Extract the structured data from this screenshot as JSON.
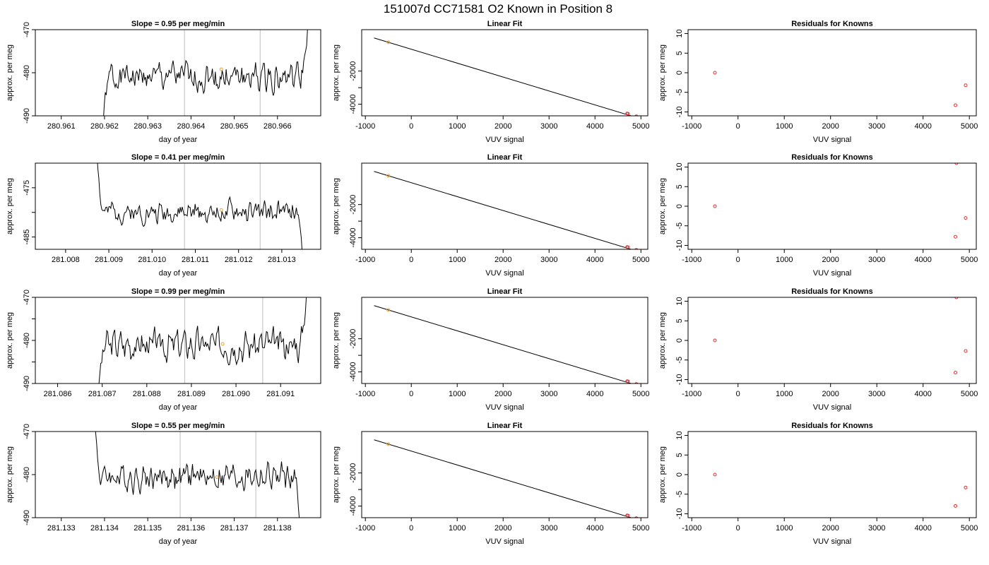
{
  "page": {
    "title": "151007d      CC71581   O2 Known in Position  8"
  },
  "chart_data": [
    {
      "type": "line",
      "title": "Slope =  0.95  per meg/min",
      "xlabel": "day of year",
      "ylabel": "approx. per meg",
      "xlim": [
        280.9604,
        280.967
      ],
      "ylim": [
        -490,
        -470
      ],
      "xticks": [
        280.961,
        280.962,
        280.963,
        280.964,
        280.965,
        280.966
      ],
      "xtick_labels": [
        "280.961",
        "280.962",
        "280.963",
        "280.964",
        "280.965",
        "280.966"
      ],
      "yticks": [
        -490,
        -480,
        -470
      ],
      "ytick_labels": [
        "-490",
        "-480",
        "-470"
      ],
      "vlines": [
        280.96385,
        280.9656
      ],
      "x_start": 280.96195,
      "x_end": 280.96672,
      "baseline": -481,
      "amplitude": 3.2,
      "seed": 1,
      "ramp_in": "start",
      "ramp_out": "up",
      "marker": {
        "x": 280.9647,
        "y": -479.2,
        "color": "#f0a030"
      },
      "line_color": "#000000",
      "grid": false
    },
    {
      "type": "scatter",
      "title": "Linear Fit",
      "xlabel": "VUV signal",
      "ylabel": "approx. per meg",
      "xlim": [
        -1080,
        5150
      ],
      "ylim": [
        -4700,
        500
      ],
      "xticks": [
        -1000,
        0,
        1000,
        2000,
        3000,
        4000,
        5000
      ],
      "xtick_labels": [
        "-1000",
        "0",
        "1000",
        "2000",
        "3000",
        "4000",
        "5000"
      ],
      "yticks": [
        -4000,
        -3000,
        -2000
      ],
      "ytick_labels": [
        "-4000",
        "",
        "-2000"
      ],
      "fit_line": {
        "x": [
          -810,
          4880
        ],
        "y": [
          0,
          -4780
        ]
      },
      "points": [
        {
          "x": -500,
          "y": -260,
          "color": "#f0a030"
        },
        {
          "x": 4700,
          "y": -4560,
          "color": "#e03030"
        },
        {
          "x": 4720,
          "y": -4575,
          "color": "#e03030"
        },
        {
          "x": 4900,
          "y": -4730,
          "color": "#e03030"
        }
      ],
      "grid": false
    },
    {
      "type": "scatter",
      "title": "Residuals for Knowns",
      "xlabel": "VUV signal",
      "ylabel": "approx. per meg",
      "xlim": [
        -1080,
        5150
      ],
      "ylim": [
        -11,
        11
      ],
      "xticks": [
        -1000,
        0,
        1000,
        2000,
        3000,
        4000,
        5000
      ],
      "xtick_labels": [
        "-1000",
        "0",
        "1000",
        "2000",
        "3000",
        "4000",
        "5000"
      ],
      "yticks": [
        -10,
        -5,
        0,
        5,
        10
      ],
      "ytick_labels": [
        "-10",
        "-5",
        "0",
        "5",
        "10"
      ],
      "points": [
        {
          "x": -500,
          "y": 0,
          "color": "#e03030"
        },
        {
          "x": 4700,
          "y": -8.3,
          "color": "#e03030"
        },
        {
          "x": 4920,
          "y": -3.2,
          "color": "#e03030"
        }
      ],
      "grid": false
    },
    {
      "type": "line",
      "title": "Slope =  0.41  per meg/min",
      "xlabel": "day of year",
      "ylabel": "approx. per meg",
      "xlim": [
        281.0073,
        281.0139
      ],
      "ylim": [
        -487.5,
        -470
      ],
      "xticks": [
        281.008,
        281.009,
        281.01,
        281.011,
        281.012,
        281.013
      ],
      "xtick_labels": [
        "281.008",
        "281.009",
        "281.010",
        "281.011",
        "281.012",
        "281.013"
      ],
      "yticks": [
        -485,
        -480,
        -475
      ],
      "ytick_labels": [
        "-485",
        "",
        "-475"
      ],
      "vlines": [
        281.01075,
        281.0125
      ],
      "x_start": 281.0087,
      "x_end": 281.01352,
      "baseline": -480,
      "amplitude": 2.0,
      "seed": 2,
      "ramp_in": "down",
      "ramp_out": "down",
      "marker": {
        "x": 281.0116,
        "y": -479.5,
        "color": "#f0a030"
      },
      "line_color": "#000000",
      "grid": false
    },
    {
      "type": "scatter",
      "title": "Linear Fit",
      "xlabel": "VUV signal",
      "ylabel": "approx. per meg",
      "xlim": [
        -1080,
        5150
      ],
      "ylim": [
        -4700,
        500
      ],
      "xticks": [
        -1000,
        0,
        1000,
        2000,
        3000,
        4000,
        5000
      ],
      "xtick_labels": [
        "-1000",
        "0",
        "1000",
        "2000",
        "3000",
        "4000",
        "5000"
      ],
      "yticks": [
        -4000,
        -3000,
        -2000
      ],
      "ytick_labels": [
        "-4000",
        "",
        "-2000"
      ],
      "fit_line": {
        "x": [
          -810,
          4880
        ],
        "y": [
          0,
          -4780
        ]
      },
      "points": [
        {
          "x": -500,
          "y": -260,
          "color": "#f0a030"
        },
        {
          "x": 4700,
          "y": -4560,
          "color": "#e03030"
        },
        {
          "x": 4720,
          "y": -4575,
          "color": "#e03030"
        },
        {
          "x": 4900,
          "y": -4730,
          "color": "#e03030"
        }
      ],
      "grid": false
    },
    {
      "type": "scatter",
      "title": "Residuals for Knowns",
      "xlabel": "VUV signal",
      "ylabel": "approx. per meg",
      "xlim": [
        -1080,
        5150
      ],
      "ylim": [
        -11,
        11
      ],
      "xticks": [
        -1000,
        0,
        1000,
        2000,
        3000,
        4000,
        5000
      ],
      "xtick_labels": [
        "-1000",
        "0",
        "1000",
        "2000",
        "3000",
        "4000",
        "5000"
      ],
      "yticks": [
        -10,
        -5,
        0,
        5,
        10
      ],
      "ytick_labels": [
        "-10",
        "-5",
        "0",
        "5",
        "10"
      ],
      "points": [
        {
          "x": -500,
          "y": 0,
          "color": "#e03030"
        },
        {
          "x": 4700,
          "y": -7.8,
          "color": "#e03030"
        },
        {
          "x": 4720,
          "y": 11,
          "color": "#e03030"
        },
        {
          "x": 4920,
          "y": -3,
          "color": "#e03030"
        }
      ],
      "grid": false
    },
    {
      "type": "line",
      "title": "Slope =  0.99  per meg/min",
      "xlabel": "day of year",
      "ylabel": "approx. per meg",
      "xlim": [
        281.0855,
        281.0919
      ],
      "ylim": [
        -490,
        -470
      ],
      "xticks": [
        281.086,
        281.087,
        281.088,
        281.089,
        281.09,
        281.091
      ],
      "xtick_labels": [
        "281.086",
        "281.087",
        "281.088",
        "281.089",
        "281.090",
        "281.091"
      ],
      "yticks": [
        -490,
        -485,
        -480,
        -475,
        -470
      ],
      "ytick_labels": [
        "-490",
        "",
        "-480",
        "",
        "-470"
      ],
      "vlines": [
        281.08885,
        281.0906
      ],
      "x_start": 281.0869,
      "x_end": 281.0916,
      "baseline": -481,
      "amplitude": 3.3,
      "seed": 3,
      "ramp_in": "start",
      "ramp_out": "up",
      "marker": {
        "x": 281.0897,
        "y": -480.8,
        "color": "#f0a030"
      },
      "line_color": "#000000",
      "grid": false
    },
    {
      "type": "scatter",
      "title": "Linear Fit",
      "xlabel": "VUV signal",
      "ylabel": "approx. per meg",
      "xlim": [
        -1080,
        5150
      ],
      "ylim": [
        -4700,
        500
      ],
      "xticks": [
        -1000,
        0,
        1000,
        2000,
        3000,
        4000,
        5000
      ],
      "xtick_labels": [
        "-1000",
        "0",
        "1000",
        "2000",
        "3000",
        "4000",
        "5000"
      ],
      "yticks": [
        -4000,
        -3000,
        -2000
      ],
      "ytick_labels": [
        "-4000",
        "",
        "-2000"
      ],
      "fit_line": {
        "x": [
          -810,
          4880
        ],
        "y": [
          0,
          -4780
        ]
      },
      "points": [
        {
          "x": -500,
          "y": -260,
          "color": "#f0a030"
        },
        {
          "x": 4700,
          "y": -4560,
          "color": "#e03030"
        },
        {
          "x": 4720,
          "y": -4575,
          "color": "#e03030"
        },
        {
          "x": 4900,
          "y": -4730,
          "color": "#e03030"
        }
      ],
      "grid": false
    },
    {
      "type": "scatter",
      "title": "Residuals for Knowns",
      "xlabel": "VUV signal",
      "ylabel": "approx. per meg",
      "xlim": [
        -1080,
        5150
      ],
      "ylim": [
        -11,
        11
      ],
      "xticks": [
        -1000,
        0,
        1000,
        2000,
        3000,
        4000,
        5000
      ],
      "xtick_labels": [
        "-1000",
        "0",
        "1000",
        "2000",
        "3000",
        "4000",
        "5000"
      ],
      "yticks": [
        -10,
        -5,
        0,
        5,
        10
      ],
      "ytick_labels": [
        "-10",
        "-5",
        "0",
        "5",
        "10"
      ],
      "points": [
        {
          "x": -500,
          "y": 0,
          "color": "#e03030"
        },
        {
          "x": 4700,
          "y": -8.2,
          "color": "#e03030"
        },
        {
          "x": 4720,
          "y": 11,
          "color": "#e03030"
        },
        {
          "x": 4920,
          "y": -2.7,
          "color": "#e03030"
        }
      ],
      "grid": false
    },
    {
      "type": "line",
      "title": "Slope =  0.55  per meg/min",
      "xlabel": "day of year",
      "ylabel": "approx. per meg",
      "xlim": [
        281.1324,
        281.139
      ],
      "ylim": [
        -490,
        -470
      ],
      "xticks": [
        281.133,
        281.134,
        281.135,
        281.136,
        281.137,
        281.138
      ],
      "xtick_labels": [
        "281.133",
        "281.134",
        "281.135",
        "281.136",
        "281.137",
        "281.138"
      ],
      "yticks": [
        -490,
        -480,
        -470
      ],
      "ytick_labels": [
        "-490",
        "-480",
        "-470"
      ],
      "vlines": [
        281.13575,
        281.1375
      ],
      "x_start": 281.13375,
      "x_end": 281.13855,
      "baseline": -480.5,
      "amplitude": 3.0,
      "seed": 4,
      "ramp_in": "down",
      "ramp_out": "down",
      "marker": {
        "x": 281.1366,
        "y": -480.6,
        "color": "#f0a030"
      },
      "line_color": "#000000",
      "grid": false
    },
    {
      "type": "scatter",
      "title": "Linear Fit",
      "xlabel": "VUV signal",
      "ylabel": "approx. per meg",
      "xlim": [
        -1080,
        5150
      ],
      "ylim": [
        -4700,
        500
      ],
      "xticks": [
        -1000,
        0,
        1000,
        2000,
        3000,
        4000,
        5000
      ],
      "xtick_labels": [
        "-1000",
        "0",
        "1000",
        "2000",
        "3000",
        "4000",
        "5000"
      ],
      "yticks": [
        -4000,
        -3000,
        -2000
      ],
      "ytick_labels": [
        "-4000",
        "",
        "-2000"
      ],
      "fit_line": {
        "x": [
          -810,
          4880
        ],
        "y": [
          0,
          -4780
        ]
      },
      "points": [
        {
          "x": -500,
          "y": -260,
          "color": "#f0a030"
        },
        {
          "x": 4700,
          "y": -4560,
          "color": "#e03030"
        },
        {
          "x": 4720,
          "y": -4575,
          "color": "#e03030"
        },
        {
          "x": 4900,
          "y": -4730,
          "color": "#e03030"
        }
      ],
      "grid": false
    },
    {
      "type": "scatter",
      "title": "Residuals for Knowns",
      "xlabel": "VUV signal",
      "ylabel": "approx. per meg",
      "xlim": [
        -1080,
        5150
      ],
      "ylim": [
        -11,
        11
      ],
      "xticks": [
        -1000,
        0,
        1000,
        2000,
        3000,
        4000,
        5000
      ],
      "xtick_labels": [
        "-1000",
        "0",
        "1000",
        "2000",
        "3000",
        "4000",
        "5000"
      ],
      "yticks": [
        -10,
        -5,
        0,
        5,
        10
      ],
      "ytick_labels": [
        "-10",
        "-5",
        "0",
        "5",
        "10"
      ],
      "points": [
        {
          "x": -500,
          "y": 0,
          "color": "#e03030"
        },
        {
          "x": 4700,
          "y": -8,
          "color": "#e03030"
        },
        {
          "x": 4920,
          "y": -3.3,
          "color": "#e03030"
        }
      ],
      "grid": false
    }
  ]
}
